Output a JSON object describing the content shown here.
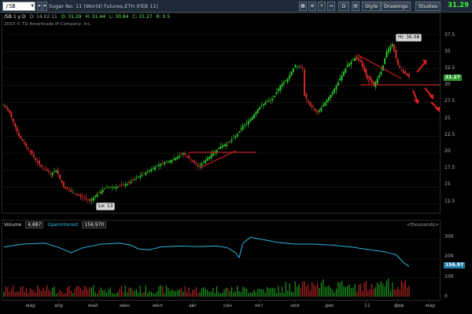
{
  "toolbar": {
    "symbol": "/SB",
    "description": "Sugar No. 11 (World) Futures,ETH (FEB 11)",
    "buttons": {
      "d_label": "D",
      "style_label": "Style",
      "drawings_label": "Drawings",
      "studies_label": "Studies"
    },
    "last_price": "31.29",
    "colors": {
      "last_price": "#3ef23e",
      "toolbar_bg": "#1e2a36"
    }
  },
  "quote_line": {
    "symbol": "/SB 1 y D",
    "date": "D: 14.02.11",
    "open": "O: 31.29",
    "high": "H: 31.44",
    "low": "L: 30.94",
    "close": "C: 31.27",
    "range": "R: 0.5",
    "copyright": "2010 © TD Ameritrade IP Company, Inc."
  },
  "price_panel": {
    "hi_tag": "Hi: 36.08",
    "lo_tag": "Lo: 13",
    "price_tag": "31.27",
    "y_labels": [
      "37.5",
      "35",
      "32.5",
      "30",
      "27.5",
      "25",
      "22.5",
      "20",
      "17.5",
      "15",
      "12.5"
    ]
  },
  "volume_panel": {
    "volume_label": "Volume",
    "volume_value": "4,687",
    "oi_label": "OpenInterest",
    "oi_value": "156,970",
    "units": "<thousands>",
    "oi_tag": "156.97",
    "y_labels": [
      "300",
      "200",
      "100",
      "0"
    ],
    "colors": {
      "oi_line": "#29b6e0"
    }
  },
  "x_labels": [
    "мар",
    "апр",
    "май",
    "июн",
    "июл",
    "авг",
    "сен",
    "окт",
    "ноя",
    "дек",
    "11",
    "фев",
    "мар"
  ],
  "chart_data": {
    "type": "candlestick",
    "title": "Sugar No. 11 (World) Futures,ETH (FEB 11)",
    "xlabel": "",
    "ylabel": "",
    "ylim": [
      11.5,
      39
    ],
    "x_ticks": [
      "мар",
      "апр",
      "май",
      "июн",
      "июл",
      "авг",
      "сен",
      "окт",
      "ноя",
      "дек",
      "11",
      "фев",
      "мар"
    ],
    "y_ticks": [
      12.5,
      15,
      17.5,
      20,
      22.5,
      25,
      27.5,
      30,
      32.5,
      35,
      37.5
    ],
    "close_path": [
      [
        0,
        27
      ],
      [
        3,
        26
      ],
      [
        8,
        22.5
      ],
      [
        12,
        21
      ],
      [
        17,
        19
      ],
      [
        20,
        18
      ],
      [
        25,
        17
      ],
      [
        28,
        17.5
      ],
      [
        32,
        15
      ],
      [
        38,
        14
      ],
      [
        42,
        13.5
      ],
      [
        46,
        13
      ],
      [
        50,
        14
      ],
      [
        55,
        15
      ],
      [
        60,
        15
      ],
      [
        66,
        15.5
      ],
      [
        72,
        16.5
      ],
      [
        78,
        17.5
      ],
      [
        84,
        18.5
      ],
      [
        90,
        19
      ],
      [
        96,
        20
      ],
      [
        100,
        19
      ],
      [
        104,
        18
      ],
      [
        108,
        19
      ],
      [
        112,
        20
      ],
      [
        116,
        21
      ],
      [
        120,
        21.5
      ],
      [
        124,
        22.5
      ],
      [
        128,
        24
      ],
      [
        132,
        25
      ],
      [
        136,
        26.5
      ],
      [
        140,
        27.5
      ],
      [
        144,
        28
      ],
      [
        148,
        30
      ],
      [
        152,
        31
      ],
      [
        156,
        33
      ],
      [
        160,
        32.5
      ],
      [
        161,
        28.5
      ],
      [
        164,
        27
      ],
      [
        168,
        26
      ],
      [
        172,
        27.5
      ],
      [
        176,
        29
      ],
      [
        180,
        31
      ],
      [
        184,
        33
      ],
      [
        188,
        34
      ],
      [
        191,
        33.5
      ],
      [
        194,
        31.5
      ],
      [
        198,
        30
      ],
      [
        202,
        32
      ],
      [
        205,
        35
      ],
      [
        208,
        36.08
      ],
      [
        211,
        33
      ],
      [
        214,
        31.8
      ],
      [
        217,
        31.27
      ]
    ],
    "annotations": {
      "high": 36.08,
      "low": 13,
      "last": 31.27
    },
    "volume_series": {
      "open_interest_last": 156.97,
      "oi_path": [
        [
          0,
          260
        ],
        [
          10,
          275
        ],
        [
          22,
          280
        ],
        [
          30,
          255
        ],
        [
          36,
          230
        ],
        [
          42,
          255
        ],
        [
          52,
          275
        ],
        [
          62,
          280
        ],
        [
          68,
          270
        ],
        [
          72,
          250
        ],
        [
          78,
          245
        ],
        [
          84,
          260
        ],
        [
          94,
          265
        ],
        [
          104,
          262
        ],
        [
          114,
          265
        ],
        [
          120,
          255
        ],
        [
          124,
          230
        ],
        [
          126,
          205
        ],
        [
          128,
          280
        ],
        [
          132,
          310
        ],
        [
          138,
          300
        ],
        [
          146,
          285
        ],
        [
          156,
          275
        ],
        [
          166,
          275
        ],
        [
          176,
          270
        ],
        [
          186,
          260
        ],
        [
          196,
          245
        ],
        [
          204,
          235
        ],
        [
          210,
          220
        ],
        [
          214,
          180
        ],
        [
          217,
          157
        ]
      ]
    }
  }
}
